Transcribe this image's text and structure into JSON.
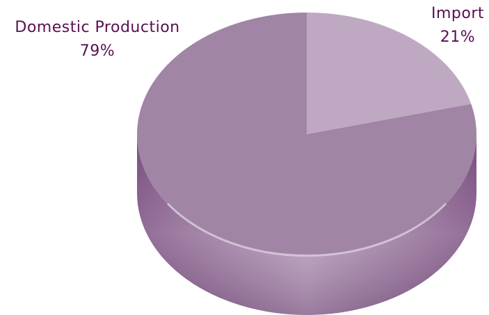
{
  "chart_data": {
    "type": "pie",
    "style": "3d",
    "title": "",
    "slices": [
      {
        "label": "Import",
        "value": 21,
        "display": "21%",
        "color": "#bfa9c2"
      },
      {
        "label": "Domestic Production",
        "value": 79,
        "display": "79%",
        "color": "#a085a5"
      }
    ],
    "side_color_dark": "#7b4f80",
    "label_color": "#5a0f52"
  }
}
